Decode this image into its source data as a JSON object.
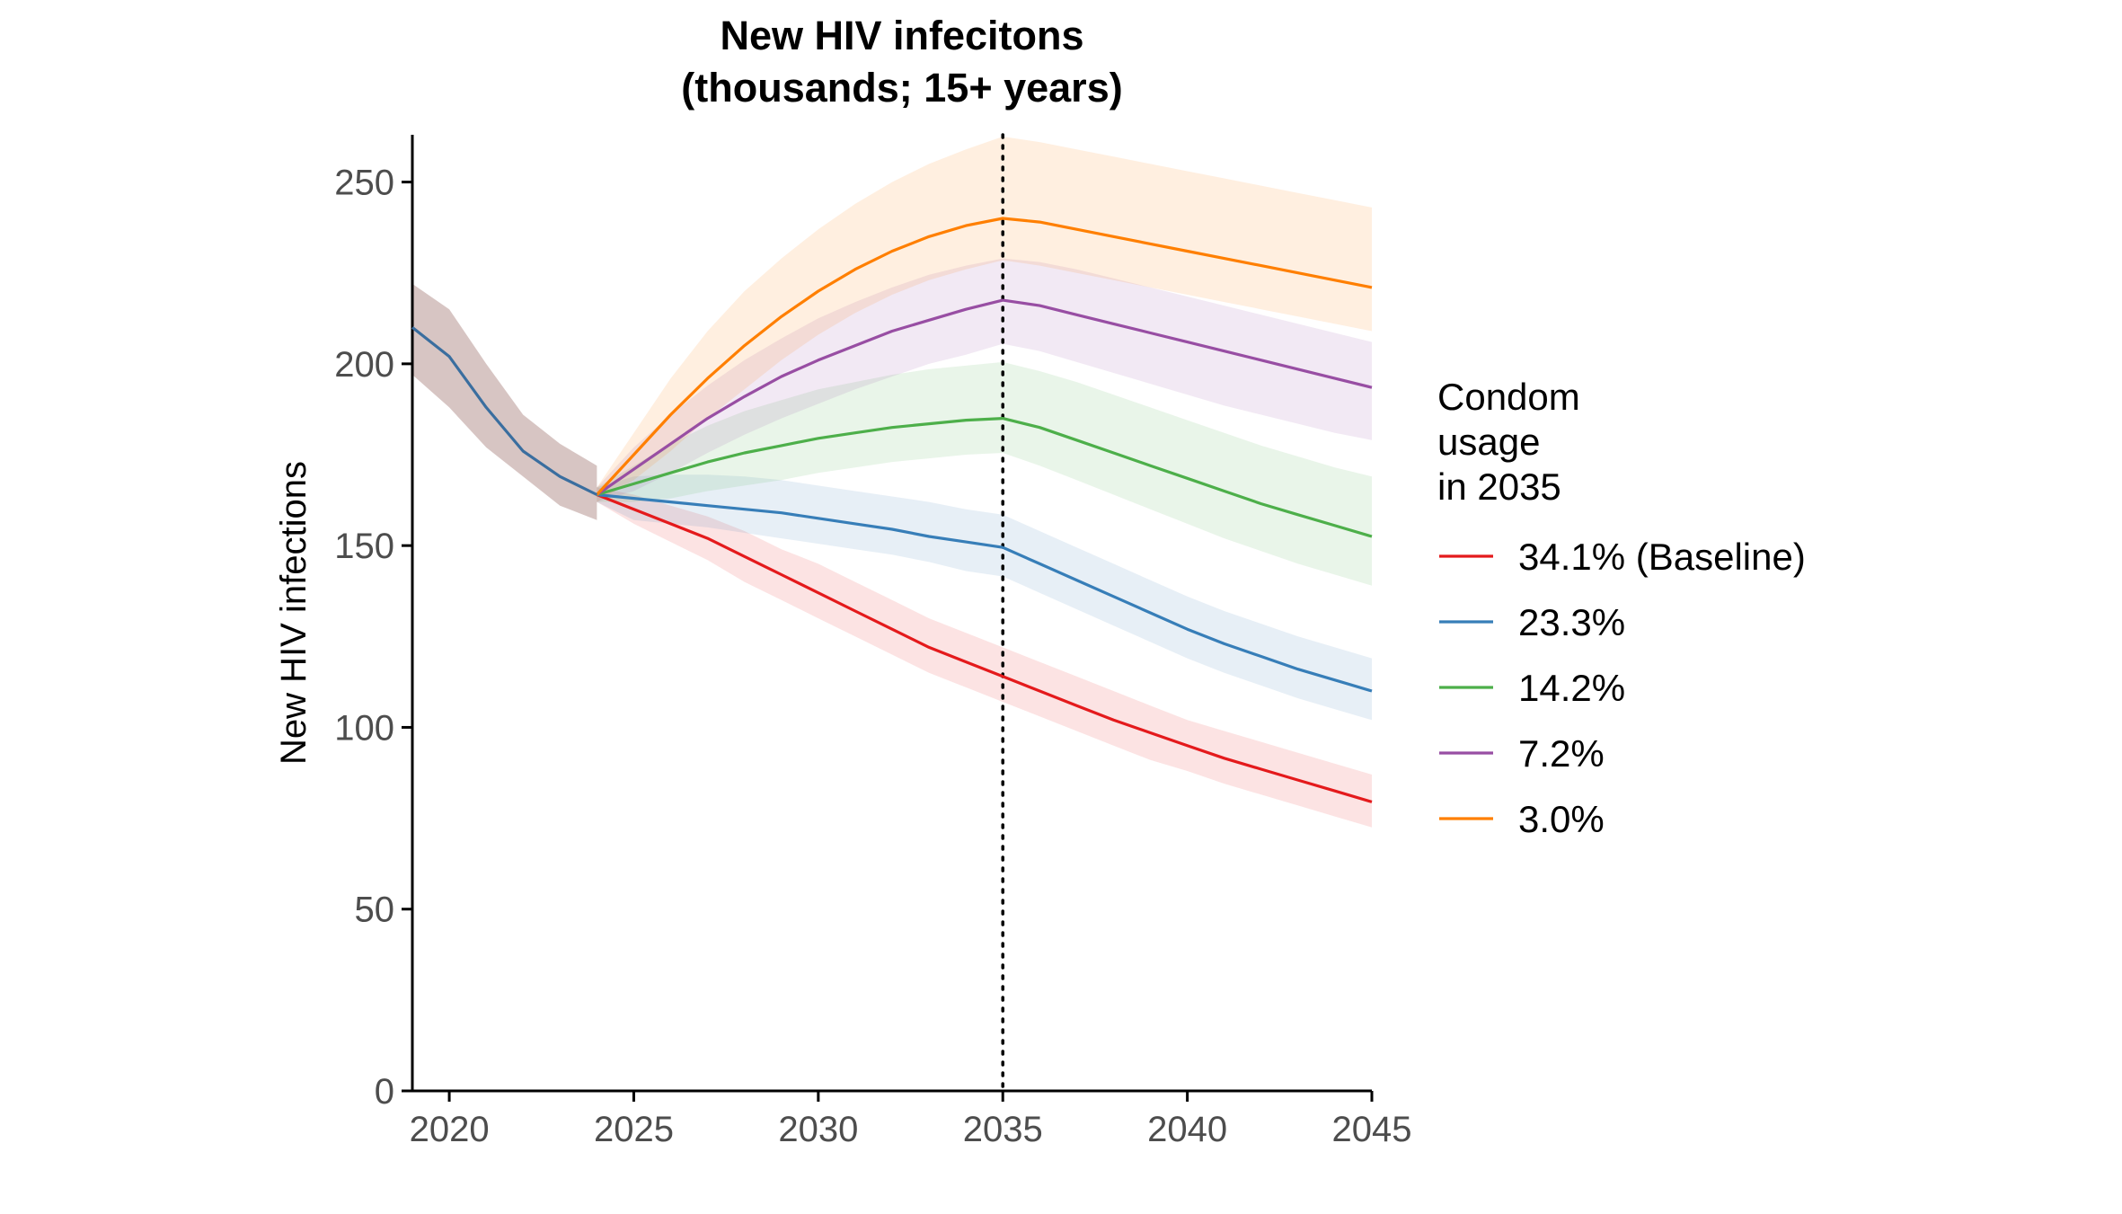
{
  "chart_data": {
    "type": "line",
    "title_lines": [
      "New HIV infecitons",
      "(thousands; 15+ years)"
    ],
    "xlabel": "",
    "ylabel": "New HIV infections",
    "xlim": [
      2019,
      2045
    ],
    "ylim": [
      0,
      263
    ],
    "x_ticks": [
      2020,
      2025,
      2030,
      2035,
      2040,
      2045
    ],
    "y_ticks": [
      0,
      50,
      100,
      150,
      200,
      250
    ],
    "reference_line": {
      "x": 2035,
      "style": "dotted",
      "color": "#000000"
    },
    "grid": false,
    "legend": {
      "title_lines": [
        "Condom",
        "usage",
        "in 2035"
      ],
      "placement": "right"
    },
    "historical": {
      "color": "#3a6e9f",
      "band_color": "#8b5a52",
      "x": [
        2019,
        2020,
        2021,
        2022,
        2023,
        2024
      ],
      "values": [
        210,
        202,
        188,
        176,
        169,
        164
      ],
      "lower": [
        197,
        188,
        177,
        169,
        161,
        157
      ],
      "upper": [
        222,
        215,
        200,
        186,
        178,
        172
      ]
    },
    "series": [
      {
        "name": "34.1% (Baseline)",
        "color": "#e41a1c",
        "x": [
          2024,
          2025,
          2026,
          2027,
          2028,
          2029,
          2030,
          2031,
          2032,
          2033,
          2034,
          2035,
          2036,
          2037,
          2038,
          2039,
          2040,
          2041,
          2042,
          2043,
          2044,
          2045
        ],
        "values": [
          164,
          160,
          156,
          152,
          147,
          142,
          137,
          132,
          127,
          122,
          118,
          114,
          110,
          106,
          102,
          98.5,
          95,
          91.5,
          88.5,
          85.5,
          82.5,
          79.5
        ],
        "lower": [
          162,
          156,
          151,
          146,
          140,
          135,
          130,
          125,
          120,
          115,
          111,
          107,
          103,
          99,
          95,
          91,
          88,
          84.5,
          81.5,
          78.5,
          75.5,
          72.5
        ],
        "upper": [
          166,
          164,
          161,
          158,
          154,
          149,
          145,
          140,
          135,
          130,
          126,
          122,
          118,
          114,
          110,
          106,
          102,
          99,
          96,
          93,
          90,
          87
        ]
      },
      {
        "name": "23.3%",
        "color": "#377eb8",
        "x": [
          2024,
          2025,
          2026,
          2027,
          2028,
          2029,
          2030,
          2031,
          2032,
          2033,
          2034,
          2035,
          2036,
          2037,
          2038,
          2039,
          2040,
          2041,
          2042,
          2043,
          2044,
          2045
        ],
        "values": [
          164,
          163,
          162,
          161,
          160,
          159,
          157.5,
          156,
          154.5,
          152.5,
          151,
          149.5,
          145,
          140.5,
          136,
          131.5,
          127,
          123,
          119.5,
          116,
          113,
          110
        ],
        "lower": [
          162,
          157,
          156,
          155,
          153.5,
          152,
          150.5,
          149,
          147.5,
          145.5,
          143,
          141.5,
          137,
          132.5,
          128,
          123.5,
          119,
          115,
          111.5,
          108,
          105,
          102
        ],
        "upper": [
          166,
          169,
          169.5,
          169.5,
          169,
          168,
          166.5,
          165,
          163.5,
          162,
          160,
          158.5,
          154,
          149.5,
          145,
          140.5,
          136,
          132,
          128.5,
          125,
          122,
          119
        ]
      },
      {
        "name": "14.2%",
        "color": "#4daf4a",
        "x": [
          2024,
          2025,
          2026,
          2027,
          2028,
          2029,
          2030,
          2031,
          2032,
          2033,
          2034,
          2035,
          2036,
          2037,
          2038,
          2039,
          2040,
          2041,
          2042,
          2043,
          2044,
          2045
        ],
        "values": [
          164,
          167,
          170,
          173,
          175.5,
          177.5,
          179.5,
          181,
          182.5,
          183.5,
          184.5,
          185,
          182.5,
          179,
          175.5,
          172,
          168.5,
          165,
          161.5,
          158.5,
          155.5,
          152.5
        ],
        "lower": [
          162,
          162,
          163,
          165,
          166.5,
          168,
          170,
          171.5,
          173,
          174,
          175,
          175.5,
          172,
          168,
          164,
          160,
          156,
          152,
          148.5,
          145,
          142,
          139
        ],
        "upper": [
          166,
          172,
          178,
          183,
          187,
          190,
          193,
          195,
          197,
          198.5,
          199.5,
          200.5,
          198,
          195,
          191.5,
          188,
          184.5,
          181,
          177.5,
          174.5,
          171.5,
          169
        ]
      },
      {
        "name": "7.2%",
        "color": "#984ea3",
        "x": [
          2024,
          2025,
          2026,
          2027,
          2028,
          2029,
          2030,
          2031,
          2032,
          2033,
          2034,
          2035,
          2036,
          2037,
          2038,
          2039,
          2040,
          2041,
          2042,
          2043,
          2044,
          2045
        ],
        "values": [
          164,
          171,
          178,
          185,
          191,
          196.5,
          201,
          205,
          209,
          212,
          215,
          217.5,
          216,
          213.5,
          211,
          208.5,
          206,
          203.5,
          201,
          198.5,
          196,
          193.5
        ],
        "lower": [
          162,
          165,
          170,
          175.5,
          180.5,
          185,
          189,
          193,
          196.5,
          200,
          202.5,
          205.5,
          203.5,
          200.5,
          197.5,
          194.5,
          191.5,
          188.5,
          186,
          183.5,
          181,
          179
        ],
        "upper": [
          166,
          177,
          186,
          194,
          201,
          207,
          212.5,
          217,
          221,
          224.5,
          227,
          229,
          228,
          226,
          223.5,
          221,
          218.5,
          216,
          213.5,
          211,
          208.5,
          206
        ]
      },
      {
        "name": "3.0%",
        "color": "#ff7f00",
        "x": [
          2024,
          2025,
          2026,
          2027,
          2028,
          2029,
          2030,
          2031,
          2032,
          2033,
          2034,
          2035,
          2036,
          2037,
          2038,
          2039,
          2040,
          2041,
          2042,
          2043,
          2044,
          2045
        ],
        "values": [
          164,
          175,
          186,
          196,
          205,
          213,
          220,
          226,
          231,
          235,
          238,
          240,
          239,
          237,
          235,
          233,
          231,
          229,
          227,
          225,
          223,
          221
        ],
        "lower": [
          162,
          168,
          176,
          185,
          193,
          201,
          208,
          214,
          219,
          223,
          226,
          228.5,
          227,
          225,
          223,
          221,
          219,
          217,
          215,
          213,
          211,
          209
        ],
        "upper": [
          166,
          181,
          196,
          209,
          220,
          229,
          237,
          244,
          250,
          255,
          259,
          262.5,
          261,
          259,
          257,
          255,
          253,
          251,
          249,
          247,
          245,
          243
        ]
      }
    ]
  }
}
